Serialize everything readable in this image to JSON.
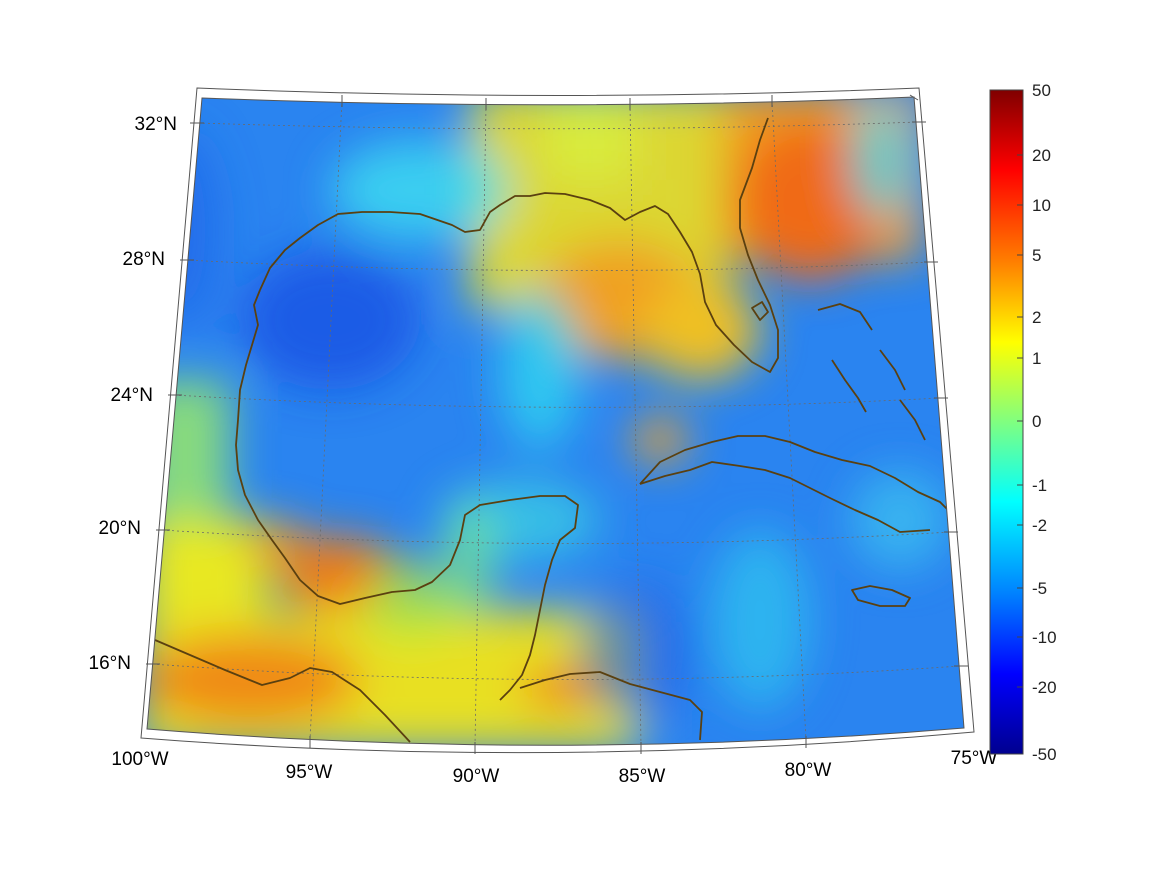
{
  "map": {
    "lat_labels": [
      "32°N",
      "28°N",
      "24°N",
      "20°N",
      "16°N"
    ],
    "lon_labels": [
      "100°W",
      "95°W",
      "90°W",
      "85°W",
      "80°W",
      "75°W"
    ],
    "colorbar": {
      "tick_labels": [
        "50",
        "20",
        "10",
        "5",
        "2",
        "1",
        "0",
        "-1",
        "-2",
        "-5",
        "-10",
        "-20",
        "-50"
      ],
      "colors": [
        "#800000",
        "#ff0000",
        "#ff8000",
        "#ffff00",
        "#80ff80",
        "#00ffff",
        "#0080ff",
        "#0000ff",
        "#00008f"
      ]
    },
    "colors": {
      "coastline": "#5a4010",
      "frame": "#555555"
    }
  }
}
